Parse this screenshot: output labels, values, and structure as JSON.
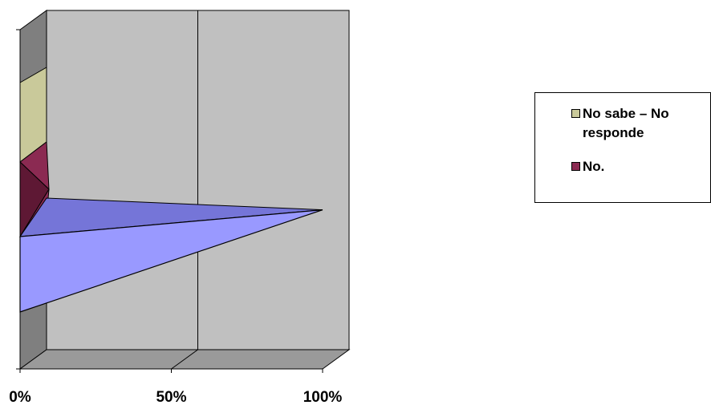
{
  "chart_data": {
    "type": "bar",
    "orientation": "horizontal",
    "style": "3d-cone",
    "xlim": [
      0,
      100
    ],
    "x_tick_labels": [
      "0%",
      "50%",
      "100%"
    ],
    "grid": true,
    "legend_position": "right",
    "series": [
      {
        "name": "No sabe – No responde",
        "color": "#C9C99A",
        "values": [
          0,
          0,
          0,
          0
        ]
      },
      {
        "name": "No.",
        "color": "#8B2A52",
        "values": [
          0,
          0,
          0,
          0
        ]
      },
      {
        "name": "",
        "color": "#9999FF",
        "values": [
          0,
          100,
          0,
          0
        ]
      }
    ],
    "visible_legend": [
      "No sabe – No responde",
      "No."
    ]
  },
  "colors": {
    "wall": "#C0C0C0",
    "side_wall": "#7F7F7F",
    "floor": "#9A9A9A",
    "cone_front": "#9999FF",
    "cone_top": "#7575D8",
    "maroon_front": "#8B2A52",
    "maroon_dark": "#5E1834",
    "tan_front": "#C9C99A"
  }
}
